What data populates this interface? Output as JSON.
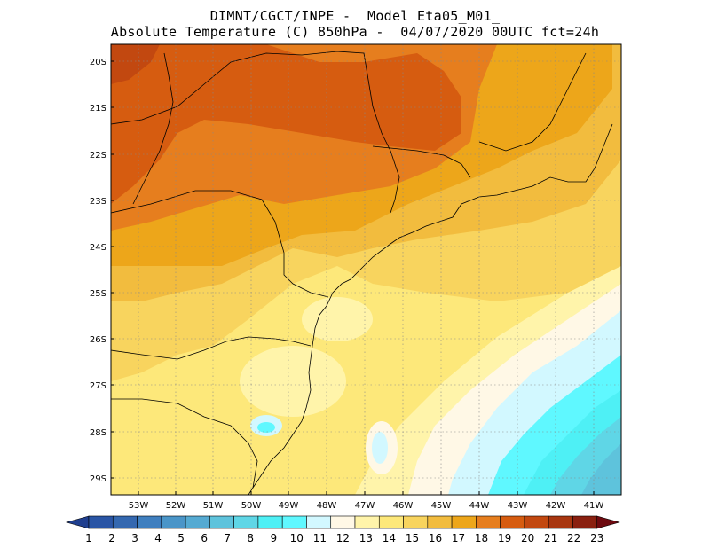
{
  "title": {
    "line1": "DIMNT/CGCT/INPE -  Model Eta05_M01_",
    "line2": "Absolute Temperature (C) 850hPa -  04/07/2020 00UTC fct=24h"
  },
  "map": {
    "lat_labels": [
      "20S",
      "21S",
      "22S",
      "23S",
      "24S",
      "25S",
      "26S",
      "27S",
      "28S",
      "29S"
    ],
    "lon_labels": [
      "53W",
      "52W",
      "51W",
      "50W",
      "49W",
      "48W",
      "47W",
      "46W",
      "45W",
      "44W",
      "43W",
      "42W",
      "41W"
    ],
    "grid": "dotted"
  },
  "colorbar": {
    "labels": [
      "1",
      "2",
      "3",
      "4",
      "5",
      "6",
      "7",
      "8",
      "9",
      "10",
      "11",
      "12",
      "13",
      "14",
      "15",
      "16",
      "17",
      "18",
      "19",
      "20",
      "21",
      "22",
      "23"
    ],
    "colors": [
      "#1f3f8f",
      "#2a55a5",
      "#3468b0",
      "#3f7fbf",
      "#4a95c8",
      "#55aad2",
      "#5ec3dc",
      "#5fd6e6",
      "#4ef0f5",
      "#5ff8ff",
      "#d2f8ff",
      "#fff8e6",
      "#fff4aa",
      "#fde87a",
      "#f8d45e",
      "#f2bc3e",
      "#eda61a",
      "#e67e1e",
      "#d65c10",
      "#c24810",
      "#a83610",
      "#8a2010",
      "#6e0a10"
    ]
  }
}
